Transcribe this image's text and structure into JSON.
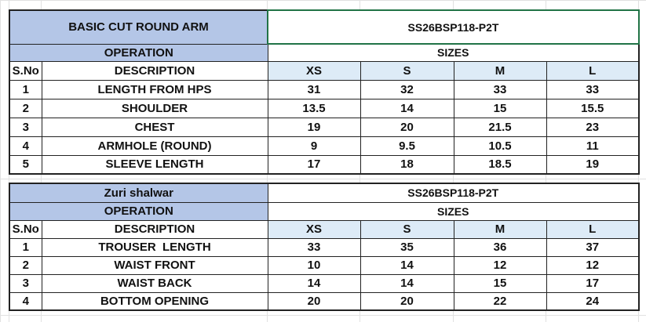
{
  "colors": {
    "title_fill": "#b4c6e7",
    "size_header_fill": "#ddebf7",
    "selection": "#217346"
  },
  "tables": [
    {
      "title": "BASIC CUT ROUND ARM",
      "style_code": "SS26BSP118-P2T",
      "operation_label": "OPERATION",
      "sizes_label": "SIZES",
      "headers": {
        "sno": "S.No",
        "description": "DESCRIPTION",
        "sizes": [
          "XS",
          "S",
          "M",
          "L"
        ]
      },
      "rows": [
        {
          "sno": "1",
          "description": "LENGTH FROM HPS",
          "values": [
            "31",
            "32",
            "33",
            "33"
          ]
        },
        {
          "sno": "2",
          "description": "SHOULDER",
          "values": [
            "13.5",
            "14",
            "15",
            "15.5"
          ]
        },
        {
          "sno": "3",
          "description": "CHEST",
          "values": [
            "19",
            "20",
            "21.5",
            "23"
          ]
        },
        {
          "sno": "4",
          "description": "ARMHOLE (ROUND)",
          "values": [
            "9",
            "9.5",
            "10.5",
            "11"
          ]
        },
        {
          "sno": "5",
          "description": "SLEEVE LENGTH",
          "values": [
            "17",
            "18",
            "18.5",
            "19"
          ]
        }
      ]
    },
    {
      "title": "Zuri shalwar",
      "style_code": "SS26BSP118-P2T",
      "operation_label": "OPERATION",
      "sizes_label": "SIZES",
      "headers": {
        "sno": "S.No",
        "description": "DESCRIPTION",
        "sizes": [
          "XS",
          "S",
          "M",
          "L"
        ]
      },
      "rows": [
        {
          "sno": "1",
          "description": "TROUSER  LENGTH",
          "values": [
            "33",
            "35",
            "36",
            "37"
          ]
        },
        {
          "sno": "2",
          "description": "WAIST FRONT",
          "values": [
            "10",
            "14",
            "12",
            "12"
          ]
        },
        {
          "sno": "3",
          "description": "WAIST BACK",
          "values": [
            "14",
            "14",
            "15",
            "17"
          ]
        },
        {
          "sno": "4",
          "description": "BOTTOM OPENING",
          "values": [
            "20",
            "20",
            "22",
            "24"
          ]
        }
      ]
    }
  ]
}
